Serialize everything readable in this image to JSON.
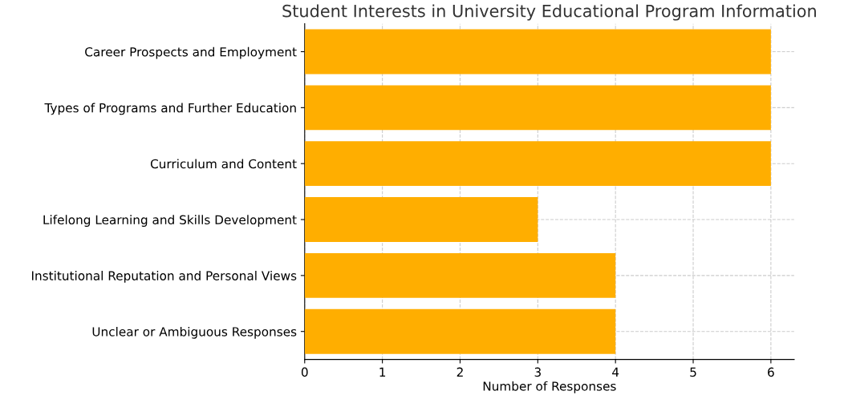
{
  "chart_data": {
    "type": "bar",
    "orientation": "horizontal",
    "title": "Student Interests in University Educational Program Information",
    "xlabel": "Number of Responses",
    "categories": [
      "Career Prospects and Employment",
      "Types of Programs and Further Education",
      "Curriculum and Content",
      "Lifelong Learning and Skills Development",
      "Institutional Reputation and Personal Views",
      "Unclear or Ambiguous Responses"
    ],
    "values": [
      6,
      6,
      6,
      3,
      4,
      4
    ],
    "color": "#ffae00",
    "xlim": [
      0,
      6.3
    ],
    "xticks": [
      0,
      1,
      2,
      3,
      4,
      5,
      6
    ],
    "grid": true
  }
}
